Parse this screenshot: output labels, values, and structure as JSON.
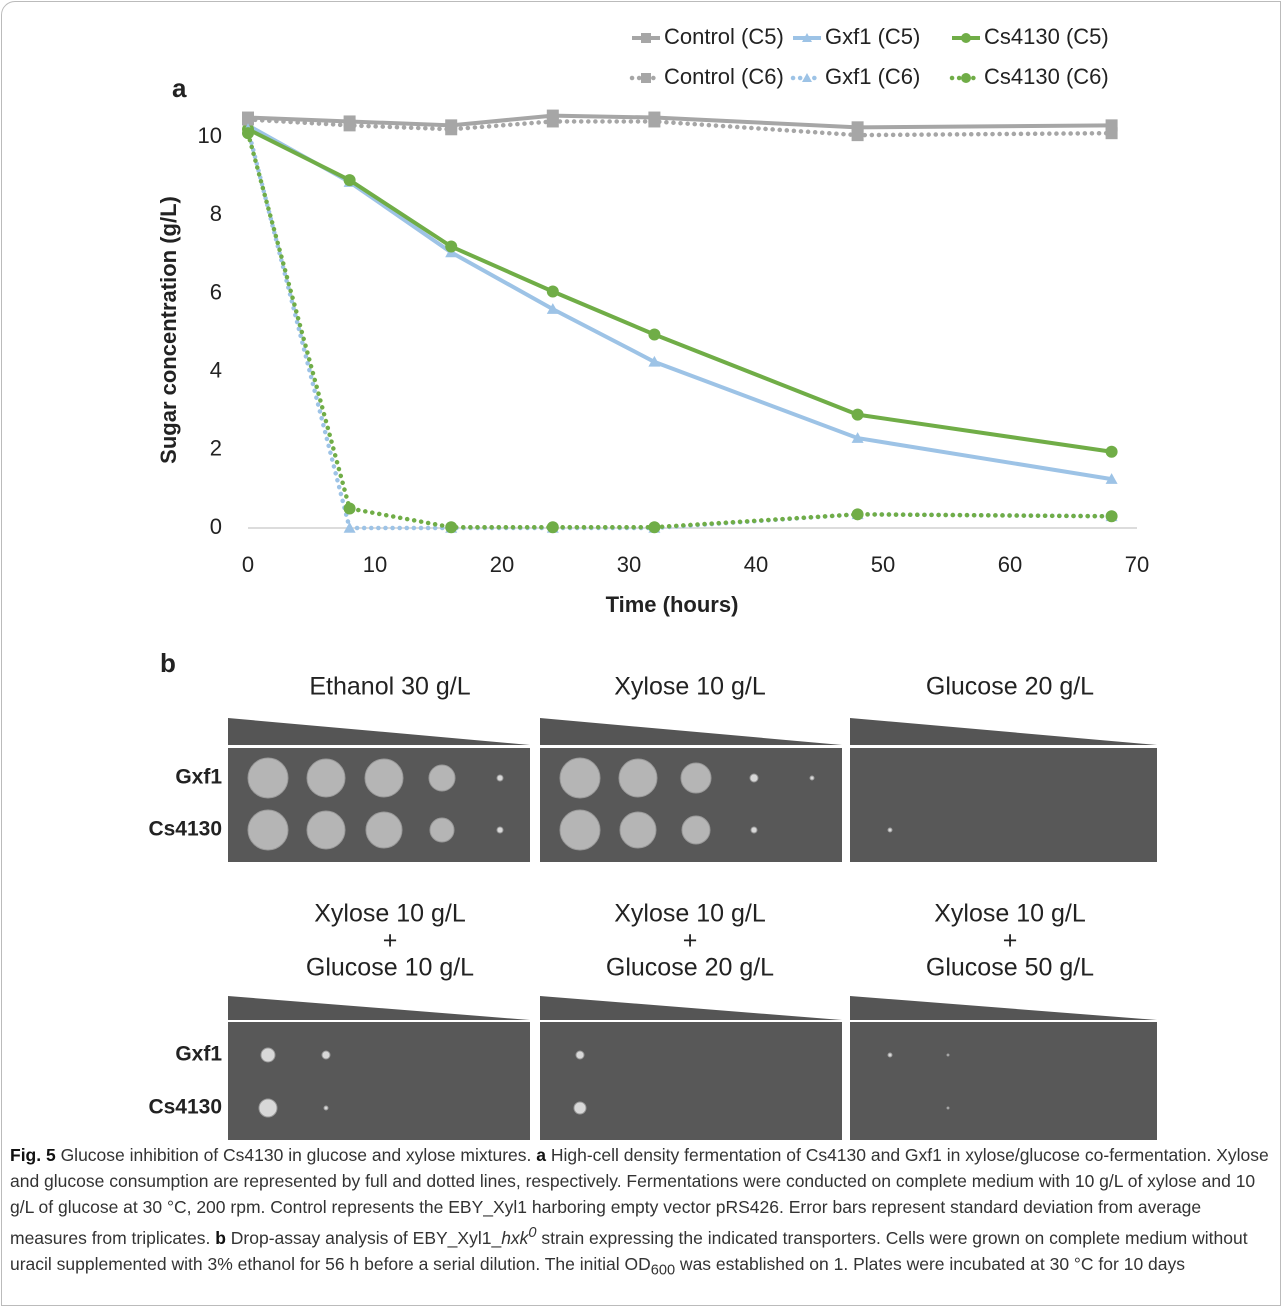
{
  "chart_data": {
    "type": "line",
    "panel_label": "a",
    "x_label": "Time (hours)",
    "y_label": "Sugar concentration (g/L)",
    "x": [
      0,
      8,
      16,
      24,
      32,
      48,
      68
    ],
    "xlim": [
      0,
      70
    ],
    "xticks": [
      0,
      10,
      20,
      30,
      40,
      50,
      60,
      70
    ],
    "ylim": [
      0,
      11
    ],
    "yticks": [
      0,
      2,
      4,
      6,
      8,
      10
    ],
    "grid": false,
    "legend": "top-right",
    "series": [
      {
        "name": "Control (C5)",
        "color": "#a6a6a6",
        "line_style": "solid",
        "marker": "square",
        "values": [
          10.5,
          10.4,
          10.3,
          10.55,
          10.5,
          10.25,
          10.3
        ]
      },
      {
        "name": "Gxf1 (C5)",
        "color": "#9dc3e6",
        "line_style": "solid",
        "marker": "triangle",
        "values": [
          10.3,
          8.85,
          7.05,
          5.6,
          4.25,
          2.3,
          1.25
        ]
      },
      {
        "name": "Cs4130 (C5)",
        "color": "#70ad47",
        "line_style": "solid",
        "marker": "circle",
        "values": [
          10.2,
          8.9,
          7.2,
          6.05,
          4.95,
          2.9,
          1.95
        ]
      },
      {
        "name": "Control (C6)",
        "color": "#a6a6a6",
        "line_style": "dotted",
        "marker": "square",
        "values": [
          10.45,
          10.3,
          10.2,
          10.4,
          10.4,
          10.05,
          10.1
        ]
      },
      {
        "name": "Gxf1 (C6)",
        "color": "#9dc3e6",
        "line_style": "dotted",
        "marker": "triangle",
        "values": [
          10.2,
          0,
          0,
          0,
          0,
          0.35,
          0.3
        ]
      },
      {
        "name": "Cs4130 (C6)",
        "color": "#70ad47",
        "line_style": "dotted",
        "marker": "circle",
        "values": [
          10.1,
          0.5,
          0.02,
          0.02,
          0.02,
          0.35,
          0.3
        ]
      }
    ]
  },
  "panel_b": {
    "label": "b",
    "top_conditions": [
      "Ethanol 30 g/L",
      "Xylose 10 g/L",
      "Glucose 20 g/L"
    ],
    "bottom_conditions": [
      [
        "Xylose 10 g/L",
        "+",
        "Glucose 10 g/L"
      ],
      [
        "Xylose 10 g/L",
        "+",
        "Glucose 20 g/L"
      ],
      [
        "Xylose 10 g/L",
        "+",
        "Glucose 50 g/L"
      ]
    ],
    "strains": [
      "Gxf1",
      "Cs4130"
    ]
  },
  "caption": [
    "Fig. 5",
    " Glucose inhibition of Cs4130 in glucose and xylose mixtures. ",
    "a",
    " High-cell density fermentation of Cs4130 and Gxf1 in xylose/glucose co-fermentation. Xylose and glucose consumption are represented by full and dotted lines, respectively. Fermentations were conducted on complete medium with 10 g/L of xylose and 10 g/L of glucose at 30 °C, 200 rpm. Control represents the EBY_Xyl1 harboring empty vector pRS426. Error bars represent standard deviation from average measures from triplicates. ",
    "b",
    " Drop-assay analysis of EBY_Xyl1_",
    "hxk",
    "0",
    " strain expressing the indicated transporters. Cells were grown on complete medium without uracil supplemented with 3% ethanol for 56 h before a serial dilution. The initial OD",
    "600",
    " was established on 1. Plates were incubated at 30 °C for 10 days"
  ]
}
